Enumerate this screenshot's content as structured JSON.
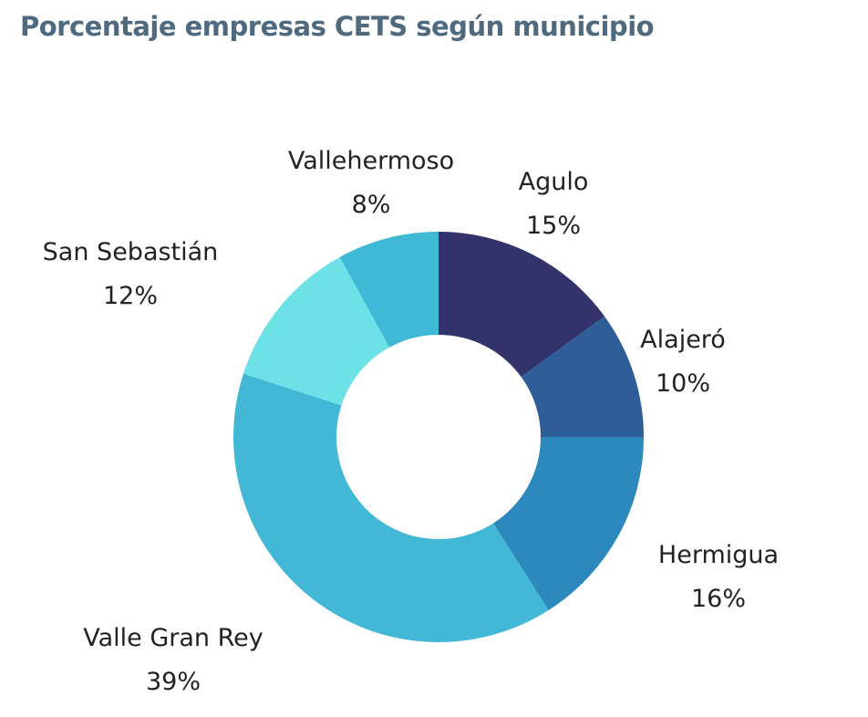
{
  "chart_data": {
    "type": "pie",
    "title": "Porcentaje empresas CETS según municipio",
    "donut": true,
    "start_angle_deg": 0,
    "direction": "clockwise",
    "slices": [
      {
        "label": "Agulo",
        "value": 15,
        "value_label": "15%",
        "color": "#32336a"
      },
      {
        "label": "Alajeró",
        "value": 10,
        "value_label": "10%",
        "color": "#2e5d97"
      },
      {
        "label": "Hermigua",
        "value": 16,
        "value_label": "16%",
        "color": "#2d89bd"
      },
      {
        "label": "Valle Gran Rey",
        "value": 39,
        "value_label": "39%",
        "color": "#43b8d6"
      },
      {
        "label": "San Sebastián",
        "value": 12,
        "value_label": "12%",
        "color": "#6ce2e7"
      },
      {
        "label": "Vallehermoso",
        "value": 8,
        "value_label": "8%",
        "color": "#40b9d7"
      }
    ]
  }
}
